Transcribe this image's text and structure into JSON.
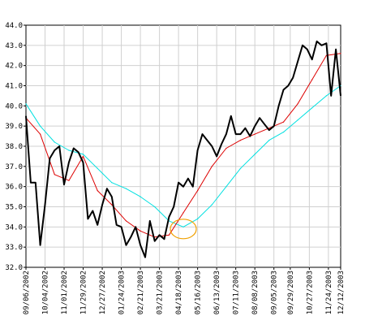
{
  "chart_data": {
    "type": "line",
    "title": "",
    "xlabel": "",
    "ylabel": "",
    "ylim": [
      32.0,
      44.0
    ],
    "y_ticks": [
      "32.0",
      "33.0",
      "34.0",
      "35.0",
      "36.0",
      "37.0",
      "38.0",
      "39.0",
      "40.0",
      "41.0",
      "42.0",
      "43.0",
      "44.0"
    ],
    "x_ticks": [
      {
        "label": "09/06/2002",
        "x": "2002-09-06"
      },
      {
        "label": "10/04/2002",
        "x": "2002-10-04"
      },
      {
        "label": "11/01/2002",
        "x": "2002-11-01"
      },
      {
        "label": "11/29/2002",
        "x": "2002-11-29"
      },
      {
        "label": "12/27/2002",
        "x": "2002-12-27"
      },
      {
        "label": "01/24/2003",
        "x": "2003-01-24"
      },
      {
        "label": "02/21/2003",
        "x": "2003-02-21"
      },
      {
        "label": "03/21/2003",
        "x": "2003-03-21"
      },
      {
        "label": "04/18/2003",
        "x": "2003-04-18"
      },
      {
        "label": "05/16/2003",
        "x": "2003-05-16"
      },
      {
        "label": "06/13/2003",
        "x": "2003-06-13"
      },
      {
        "label": "07/11/2003",
        "x": "2003-07-11"
      },
      {
        "label": "08/08/2003",
        "x": "2003-08-08"
      },
      {
        "label": "09/05/2003",
        "x": "2003-09-05"
      },
      {
        "label": "09/29/2003",
        "x": "2003-09-29"
      },
      {
        "label": "10/27/2003",
        "x": "2003-10-27"
      },
      {
        "label": "11/24/2003",
        "x": "2003-11-24"
      },
      {
        "label": "12/12/2003",
        "x": "2003-12-12"
      }
    ],
    "grid": true,
    "colors": {
      "price": "#000000",
      "short_ma": "#dd0000",
      "long_ma": "#00e0e0",
      "marker": "#f0a000"
    },
    "series": [
      {
        "role": "price",
        "x": [
          "2002-09-06",
          "2002-09-13",
          "2002-09-20",
          "2002-09-27",
          "2002-10-04",
          "2002-10-11",
          "2002-10-18",
          "2002-10-25",
          "2002-11-01",
          "2002-11-08",
          "2002-11-15",
          "2002-11-22",
          "2002-11-29",
          "2002-12-06",
          "2002-12-13",
          "2002-12-20",
          "2002-12-27",
          "2003-01-03",
          "2003-01-10",
          "2003-01-17",
          "2003-01-24",
          "2003-01-31",
          "2003-02-07",
          "2003-02-14",
          "2003-02-21",
          "2003-02-28",
          "2003-03-07",
          "2003-03-14",
          "2003-03-21",
          "2003-03-28",
          "2003-04-04",
          "2003-04-11",
          "2003-04-18",
          "2003-04-25",
          "2003-05-02",
          "2003-05-09",
          "2003-05-16",
          "2003-05-23",
          "2003-05-30",
          "2003-06-06",
          "2003-06-13",
          "2003-06-20",
          "2003-06-27",
          "2003-07-04",
          "2003-07-11",
          "2003-07-18",
          "2003-07-25",
          "2003-08-01",
          "2003-08-08",
          "2003-08-15",
          "2003-08-22",
          "2003-08-29",
          "2003-09-05",
          "2003-09-12",
          "2003-09-19",
          "2003-09-26",
          "2003-10-03",
          "2003-10-10",
          "2003-10-17",
          "2003-10-24",
          "2003-10-31",
          "2003-11-07",
          "2003-11-14",
          "2003-11-21",
          "2003-11-28",
          "2003-12-05",
          "2003-12-12"
        ],
        "values": [
          39.5,
          36.2,
          36.2,
          33.1,
          35.1,
          37.4,
          37.8,
          38.0,
          36.1,
          37.2,
          37.9,
          37.7,
          37.2,
          34.4,
          34.8,
          34.1,
          35.1,
          35.9,
          35.5,
          34.1,
          34.0,
          33.1,
          33.5,
          34.0,
          33.1,
          32.5,
          34.3,
          33.3,
          33.6,
          33.4,
          34.5,
          35.0,
          36.2,
          36.0,
          36.4,
          36.0,
          37.8,
          38.6,
          38.3,
          38.0,
          37.5,
          38.1,
          38.6,
          39.5,
          38.6,
          38.6,
          38.9,
          38.5,
          39.0,
          39.4,
          39.1,
          38.8,
          39.0,
          40.0,
          40.8,
          41.0,
          41.4,
          42.2,
          43.0,
          42.8,
          42.3,
          43.2,
          43.0,
          43.1,
          40.5,
          42.8,
          40.5
        ]
      },
      {
        "role": "short_ma",
        "x": [
          "2002-09-06",
          "2002-09-27",
          "2002-10-18",
          "2002-11-08",
          "2002-11-29",
          "2002-12-20",
          "2003-01-10",
          "2003-01-31",
          "2003-02-21",
          "2003-03-14",
          "2003-04-04",
          "2003-04-25",
          "2003-05-16",
          "2003-06-06",
          "2003-06-27",
          "2003-07-18",
          "2003-08-08",
          "2003-08-29",
          "2003-09-19",
          "2003-10-10",
          "2003-10-31",
          "2003-11-21",
          "2003-12-12"
        ],
        "values": [
          39.4,
          38.6,
          36.6,
          36.3,
          37.5,
          35.8,
          35.1,
          34.3,
          33.8,
          33.5,
          33.6,
          34.7,
          35.8,
          37.0,
          37.9,
          38.3,
          38.6,
          38.9,
          39.2,
          40.1,
          41.3,
          42.5,
          42.6
        ]
      },
      {
        "role": "long_ma",
        "x": [
          "2002-09-06",
          "2002-09-27",
          "2002-10-18",
          "2002-11-08",
          "2002-11-29",
          "2002-12-20",
          "2003-01-10",
          "2003-01-31",
          "2003-02-21",
          "2003-03-14",
          "2003-04-04",
          "2003-04-25",
          "2003-05-16",
          "2003-06-06",
          "2003-06-27",
          "2003-07-18",
          "2003-08-08",
          "2003-08-29",
          "2003-09-19",
          "2003-10-10",
          "2003-10-31",
          "2003-11-21",
          "2003-12-12"
        ],
        "values": [
          40.1,
          39.0,
          38.2,
          37.8,
          37.6,
          36.9,
          36.2,
          35.9,
          35.5,
          35.0,
          34.3,
          34.0,
          34.4,
          35.1,
          36.0,
          36.9,
          37.6,
          38.3,
          38.7,
          39.3,
          39.9,
          40.5,
          41.0
        ]
      }
    ],
    "annotations": [
      {
        "type": "ellipse",
        "x": "2003-04-25",
        "y": 33.9,
        "color": "#f0a000"
      }
    ]
  }
}
